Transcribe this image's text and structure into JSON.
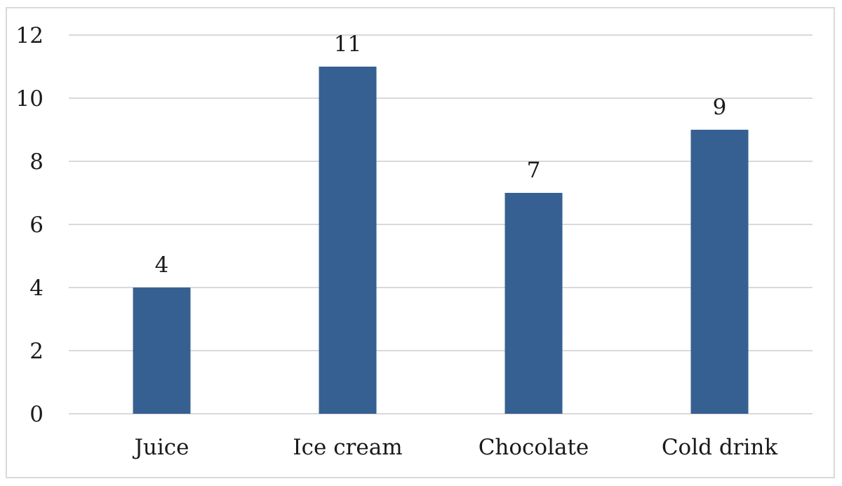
{
  "chart_data": {
    "type": "bar",
    "categories": [
      "Juice",
      "Ice cream",
      "Chocolate",
      "Cold drink"
    ],
    "values": [
      4,
      11,
      7,
      9
    ],
    "data_labels": [
      "4",
      "11",
      "7",
      "9"
    ],
    "title": "",
    "xlabel": "",
    "ylabel": "",
    "ylim": [
      0,
      12
    ],
    "yticks": [
      0,
      2,
      4,
      6,
      8,
      10,
      12
    ],
    "grid": true,
    "legend": "none",
    "bar_color": "#376092",
    "grid_color": "#d9d9d9"
  }
}
